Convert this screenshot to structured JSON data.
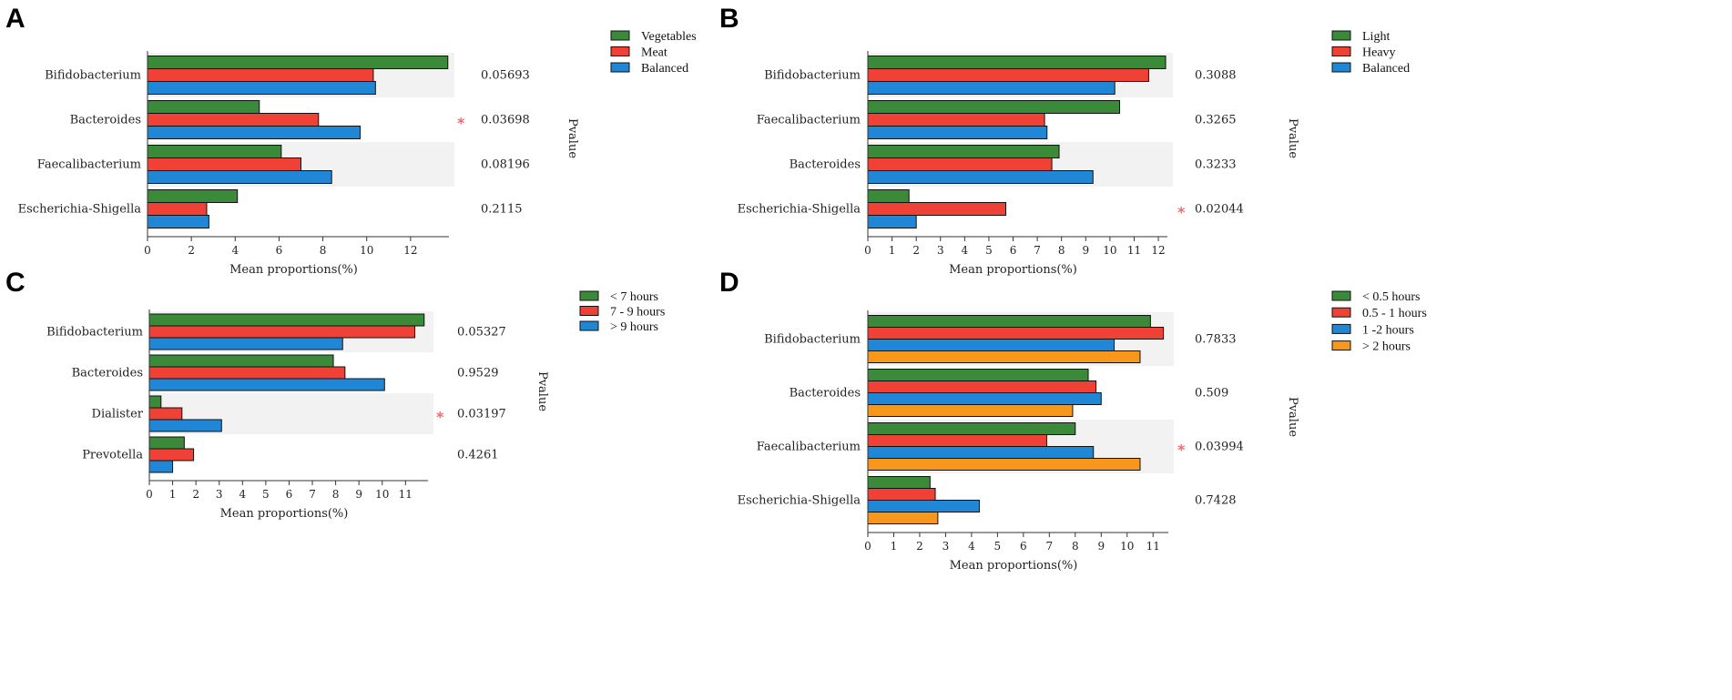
{
  "colors": {
    "green": "#3a8a3a",
    "red": "#ef4136",
    "blue": "#1f87d6",
    "orange": "#f7981d",
    "band": "#f2f2f2",
    "star": "#f26b6b"
  },
  "chart_data": [
    {
      "panel": "A",
      "type": "bar",
      "orientation": "horizontal",
      "categories": [
        "Bifidobacterium",
        "Bacteroides",
        "Faecalibacterium",
        "Escherichia-Shigella"
      ],
      "series": [
        {
          "name": "Vegetables",
          "color": "green",
          "values": [
            13.7,
            5.1,
            6.1,
            4.1
          ]
        },
        {
          "name": "Meat",
          "color": "red",
          "values": [
            10.3,
            7.8,
            7.0,
            2.7
          ]
        },
        {
          "name": "Balanced",
          "color": "blue",
          "values": [
            10.4,
            9.7,
            8.4,
            2.8
          ]
        }
      ],
      "pvalues": [
        "0.05693",
        "0.03698",
        "0.08196",
        "0.2115"
      ],
      "significant": [
        false,
        true,
        false,
        false
      ],
      "xlim": [
        0,
        14
      ],
      "xticks": [
        0,
        2,
        4,
        6,
        8,
        10,
        12
      ],
      "xlabel": "Mean proportions(%)",
      "pvalue_label": "Pvalue"
    },
    {
      "panel": "B",
      "type": "bar",
      "orientation": "horizontal",
      "categories": [
        "Bifidobacterium",
        "Faecalibacterium",
        "Bacteroides",
        "Escherichia-Shigella"
      ],
      "series": [
        {
          "name": "Light",
          "color": "green",
          "values": [
            12.3,
            10.4,
            7.9,
            1.7
          ]
        },
        {
          "name": "Heavy",
          "color": "red",
          "values": [
            11.6,
            7.3,
            7.6,
            5.7
          ]
        },
        {
          "name": "Balanced",
          "color": "blue",
          "values": [
            10.2,
            7.4,
            9.3,
            2.0
          ]
        }
      ],
      "pvalues": [
        "0.3088",
        "0.3265",
        "0.3233",
        "0.02044"
      ],
      "significant": [
        false,
        false,
        false,
        true
      ],
      "xlim": [
        0,
        12.6
      ],
      "xticks": [
        0,
        1,
        2,
        3,
        4,
        5,
        6,
        7,
        8,
        9,
        10,
        11,
        12
      ],
      "xlabel": "Mean proportions(%)",
      "pvalue_label": "Pvalue"
    },
    {
      "panel": "C",
      "type": "bar",
      "orientation": "horizontal",
      "categories": [
        "Bifidobacterium",
        "Bacteroides",
        "Dialister",
        "Prevotella"
      ],
      "series": [
        {
          "name": "< 7 hours",
          "color": "green",
          "values": [
            11.8,
            7.9,
            0.5,
            1.5
          ]
        },
        {
          "name": "7 - 9 hours",
          "color": "red",
          "values": [
            11.4,
            8.4,
            1.4,
            1.9
          ]
        },
        {
          "name": "> 9 hours",
          "color": "blue",
          "values": [
            8.3,
            10.1,
            3.1,
            1.0
          ]
        }
      ],
      "pvalues": [
        "0.05327",
        "0.9529",
        "0.03197",
        "0.4261"
      ],
      "significant": [
        false,
        false,
        true,
        false
      ],
      "xlim": [
        0,
        12.2
      ],
      "xticks": [
        0,
        1,
        2,
        3,
        4,
        5,
        6,
        7,
        8,
        9,
        10,
        11
      ],
      "xlabel": "Mean proportions(%)",
      "pvalue_label": "Pvalue"
    },
    {
      "panel": "D",
      "type": "bar",
      "orientation": "horizontal",
      "categories": [
        "Bifidobacterium",
        "Bacteroides",
        "Faecalibacterium",
        "Escherichia-Shigella"
      ],
      "series": [
        {
          "name": "< 0.5 hours",
          "color": "green",
          "values": [
            10.9,
            8.5,
            8.0,
            2.4
          ]
        },
        {
          "name": "0.5 - 1 hours",
          "color": "red",
          "values": [
            11.4,
            8.8,
            6.9,
            2.6
          ]
        },
        {
          "name": "1 -2 hours",
          "color": "blue",
          "values": [
            9.5,
            9.0,
            8.7,
            4.3
          ]
        },
        {
          "name": "> 2 hours",
          "color": "orange",
          "values": [
            10.5,
            7.9,
            10.5,
            2.7
          ]
        }
      ],
      "pvalues": [
        "0.7833",
        "0.509",
        "0.03994",
        "0.7428"
      ],
      "significant": [
        false,
        false,
        true,
        false
      ],
      "xlim": [
        0,
        11.8
      ],
      "xticks": [
        0,
        1,
        2,
        3,
        4,
        5,
        6,
        7,
        8,
        9,
        10,
        11
      ],
      "xlabel": "Mean proportions(%)",
      "pvalue_label": "Pvalue"
    }
  ]
}
